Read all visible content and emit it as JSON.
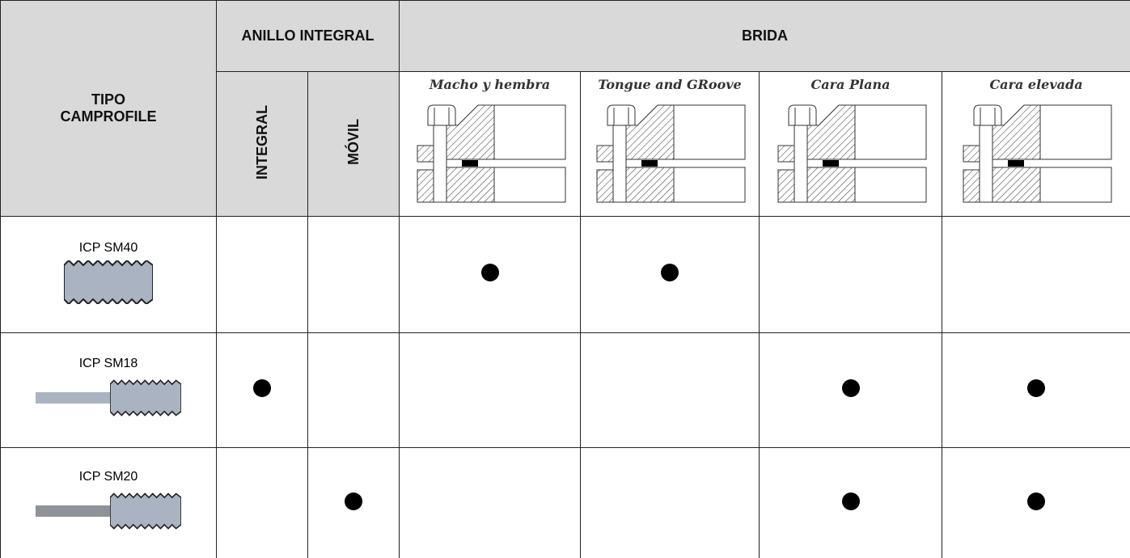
{
  "header": {
    "type_title": [
      "TIPO",
      "CAMPROFILE"
    ],
    "groups": [
      "ANILLO INTEGRAL",
      "BRIDA"
    ],
    "columns": [
      "INTEGRAL",
      "MÓVIL",
      "Macho y hembra",
      "Tongue and GRoove",
      "Cara Plana",
      "Cara elevada"
    ]
  },
  "rows": [
    {
      "name": "ICP SM40",
      "marks": [
        false,
        false,
        true,
        true,
        false,
        false
      ]
    },
    {
      "name": "ICP SM18",
      "marks": [
        true,
        false,
        false,
        false,
        true,
        true
      ]
    },
    {
      "name": "ICP SM20",
      "marks": [
        false,
        true,
        false,
        false,
        true,
        true
      ]
    }
  ]
}
